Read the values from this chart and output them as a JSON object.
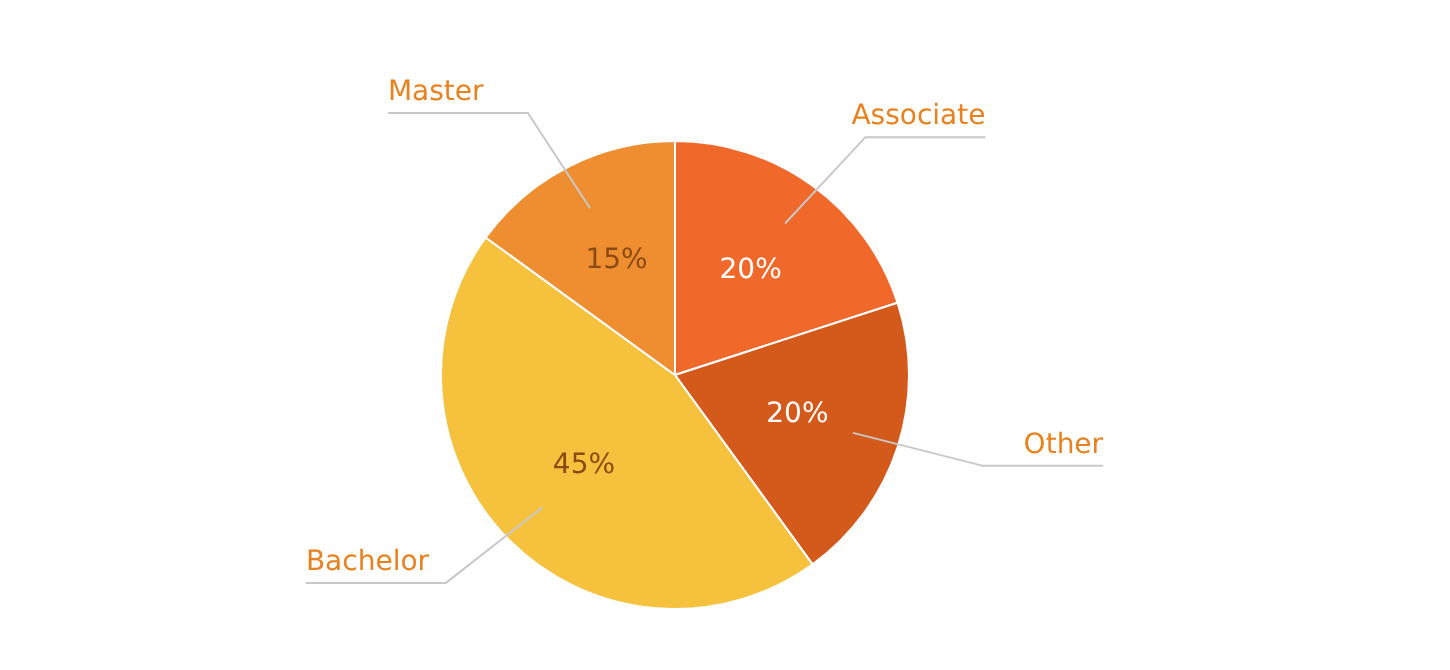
{
  "chart_data": {
    "type": "pie",
    "categories": [
      "Associate",
      "Other",
      "Bachelor",
      "Master"
    ],
    "values": [
      20,
      20,
      45,
      15
    ],
    "value_labels": [
      "20%",
      "20%",
      "45%",
      "15%"
    ],
    "colors": [
      "#f0682a",
      "#d45a1c",
      "#f6c23e",
      "#ee8e30"
    ],
    "legend": false
  }
}
